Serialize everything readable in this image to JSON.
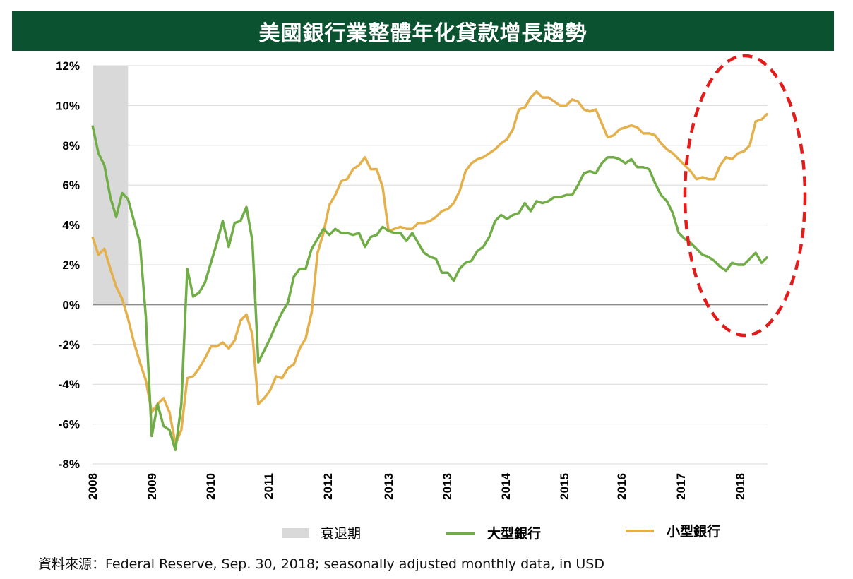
{
  "title": "美國銀行業整體年化貸款增長趨勢",
  "source": "資料來源：Federal Reserve, Sep.  30, 2018; seasonally adjusted monthly data, in USD",
  "colors": {
    "title_bg": "#0a5230",
    "large_bank": "#70ad47",
    "small_bank": "#e3b04b",
    "recession": "#d9d9d9",
    "highlight": "#e31b1b"
  },
  "chart_data": {
    "type": "line",
    "title": "美國銀行業整體年化貸款增長趨勢",
    "y_ticks": [
      "12%",
      "10%",
      "8%",
      "6%",
      "4%",
      "2%",
      "0%",
      "-2%",
      "-4%",
      "-6%",
      "-8%"
    ],
    "ylim": [
      -8,
      12
    ],
    "x_tick_labels": [
      "2008",
      "2009",
      "2010",
      "2011",
      "2012",
      "2013",
      "2013",
      "2014",
      "2015",
      "2016",
      "2017",
      "2018"
    ],
    "grid": true,
    "legend_position": "bottom",
    "recession": {
      "label": "衰退期",
      "start_index": 0,
      "end_index": 6
    },
    "series": [
      {
        "name": "大型銀行",
        "color": "#70ad47",
        "values": [
          9.0,
          7.6,
          7.0,
          5.4,
          4.4,
          5.6,
          5.3,
          4.2,
          3.1,
          -0.6,
          -6.6,
          -5.0,
          -6.1,
          -6.3,
          -7.3,
          -5.0,
          1.8,
          0.4,
          0.6,
          1.1,
          2.1,
          3.1,
          4.2,
          2.9,
          4.1,
          4.2,
          4.9,
          3.2,
          -2.9,
          -2.3,
          -1.7,
          -1.0,
          -0.4,
          0.1,
          1.4,
          1.8,
          1.8,
          2.8,
          3.3,
          3.8,
          3.5,
          3.8,
          3.6,
          3.6,
          3.5,
          3.6,
          2.9,
          3.4,
          3.5,
          3.9,
          3.7,
          3.6,
          3.6,
          3.2,
          3.6,
          3.1,
          2.6,
          2.4,
          2.3,
          1.6,
          1.6,
          1.2,
          1.8,
          2.1,
          2.2,
          2.7,
          2.9,
          3.4,
          4.2,
          4.5,
          4.3,
          4.5,
          4.6,
          5.1,
          4.7,
          5.2,
          5.1,
          5.2,
          5.4,
          5.4,
          5.5,
          5.5,
          6.0,
          6.6,
          6.7,
          6.6,
          7.1,
          7.4,
          7.4,
          7.3,
          7.1,
          7.3,
          6.9,
          6.9,
          6.8,
          6.1,
          5.5,
          5.2,
          4.6,
          3.6,
          3.3,
          3.1,
          2.8,
          2.5,
          2.4,
          2.2,
          1.9,
          1.7,
          2.1,
          2.0,
          2.0,
          2.3,
          2.6,
          2.1,
          2.4
        ]
      },
      {
        "name": "小型銀行",
        "color": "#e3b04b",
        "values": [
          3.4,
          2.5,
          2.8,
          1.8,
          0.9,
          0.3,
          -0.7,
          -1.9,
          -2.9,
          -3.8,
          -5.4,
          -5.0,
          -4.7,
          -5.4,
          -7.0,
          -6.3,
          -3.7,
          -3.6,
          -3.2,
          -2.7,
          -2.1,
          -2.1,
          -1.9,
          -2.2,
          -1.8,
          -0.8,
          -0.5,
          -1.5,
          -5.0,
          -4.7,
          -4.3,
          -3.6,
          -3.7,
          -3.2,
          -3.0,
          -2.2,
          -1.7,
          -0.4,
          2.6,
          3.6,
          5.0,
          5.5,
          6.2,
          6.3,
          6.8,
          7.0,
          7.4,
          6.8,
          6.8,
          5.9,
          3.7,
          3.8,
          3.9,
          3.8,
          3.8,
          4.1,
          4.1,
          4.2,
          4.4,
          4.7,
          4.8,
          5.1,
          5.7,
          6.7,
          7.1,
          7.3,
          7.4,
          7.6,
          7.8,
          8.1,
          8.3,
          8.8,
          9.8,
          9.9,
          10.4,
          10.7,
          10.4,
          10.4,
          10.2,
          10.0,
          10.0,
          10.3,
          10.2,
          9.8,
          9.7,
          9.8,
          9.1,
          8.4,
          8.5,
          8.8,
          8.9,
          9.0,
          8.9,
          8.6,
          8.6,
          8.5,
          8.1,
          7.8,
          7.6,
          7.3,
          7.0,
          6.7,
          6.3,
          6.4,
          6.3,
          6.3,
          7.0,
          7.4,
          7.3,
          7.6,
          7.7,
          8.0,
          9.2,
          9.3,
          9.6
        ]
      }
    ]
  }
}
